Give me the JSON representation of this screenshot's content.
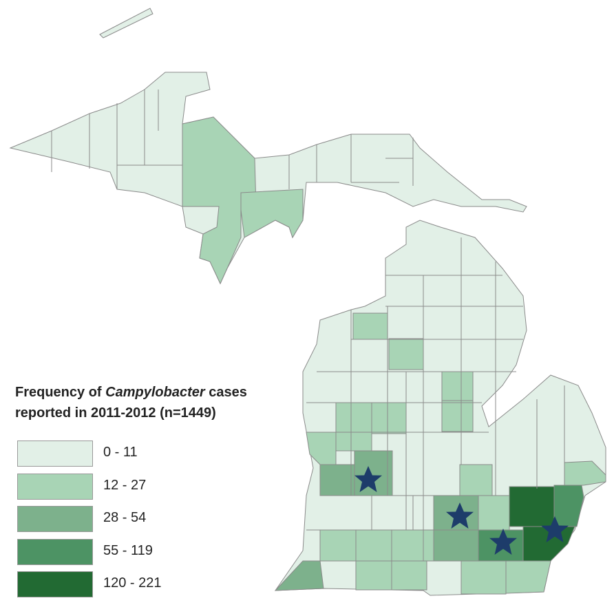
{
  "legend": {
    "title": [
      "Frequency of",
      "Campylobacter",
      "cases",
      "reported in 2011-2012 (n=1449)"
    ],
    "items": [
      {
        "label": "0 - 11",
        "color": "#e2f0e7"
      },
      {
        "label": "12 - 27",
        "color": "#a8d4b5"
      },
      {
        "label": "28 - 54",
        "color": "#7db18c"
      },
      {
        "label": "55 - 119",
        "color": "#4d9364"
      },
      {
        "label": "120 - 221",
        "color": "#226a33"
      }
    ]
  }
}
